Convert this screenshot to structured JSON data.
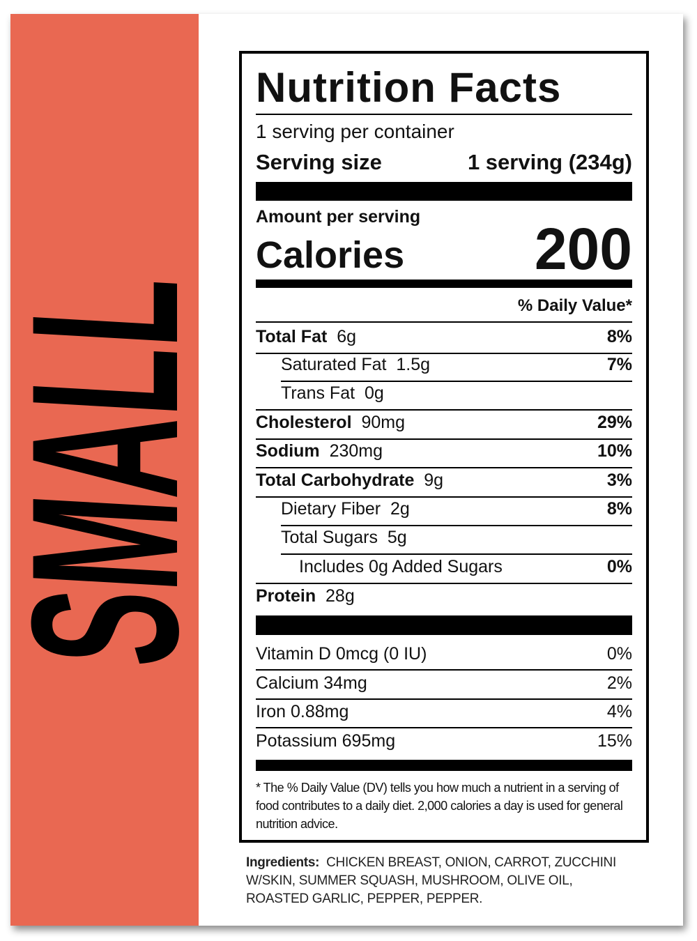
{
  "side_label": "SMALL",
  "label": {
    "title": "Nutrition Facts",
    "servings_per_container": "1 serving per container",
    "serving_size": {
      "label": "Serving size",
      "value": "1 serving (234g)"
    },
    "amount_per_serving": "Amount per serving",
    "calories": {
      "label": "Calories",
      "value": 200
    },
    "dv_header": "% Daily Value*",
    "nutrients": [
      {
        "name": "Total Fat",
        "amount": "6g",
        "dv": "8%"
      },
      {
        "name": "Saturated Fat",
        "amount": "1.5g",
        "dv": "7%"
      },
      {
        "name": "Trans Fat",
        "amount": "0g"
      },
      {
        "name": "Cholesterol",
        "amount": "90mg",
        "dv": "29%"
      },
      {
        "name": "Sodium",
        "amount": "230mg",
        "dv": "10%"
      },
      {
        "name": "Total Carbohydrate",
        "amount": "9g",
        "dv": "3%"
      },
      {
        "name": "Dietary Fiber",
        "amount": "2g",
        "dv": "8%"
      },
      {
        "name": "Total Sugars",
        "amount": "5g"
      },
      {
        "name": "Includes 0g Added Sugars",
        "dv": "0%"
      },
      {
        "name": "Protein",
        "amount": "28g"
      }
    ],
    "vitamins": [
      {
        "name": "Vitamin D 0mcg (0 IU)",
        "dv": "0%"
      },
      {
        "name": "Calcium 34mg",
        "dv": "2%"
      },
      {
        "name": "Iron 0.88mg",
        "dv": "4%"
      },
      {
        "name": "Potassium 695mg",
        "dv": "15%"
      }
    ],
    "footnote": "* The % Daily Value (DV) tells you how much a nutrient in a serving of food contributes to a daily diet. 2,000 calories a day is used for general nutrition advice."
  },
  "ingredients": {
    "label": "Ingredients:",
    "text": "CHICKEN BREAST, ONION, CARROT, ZUCCHINI W/SKIN, SUMMER SQUASH, MUSHROOM, OLIVE OIL, ROASTED GARLIC, PEPPER, PEPPER."
  }
}
